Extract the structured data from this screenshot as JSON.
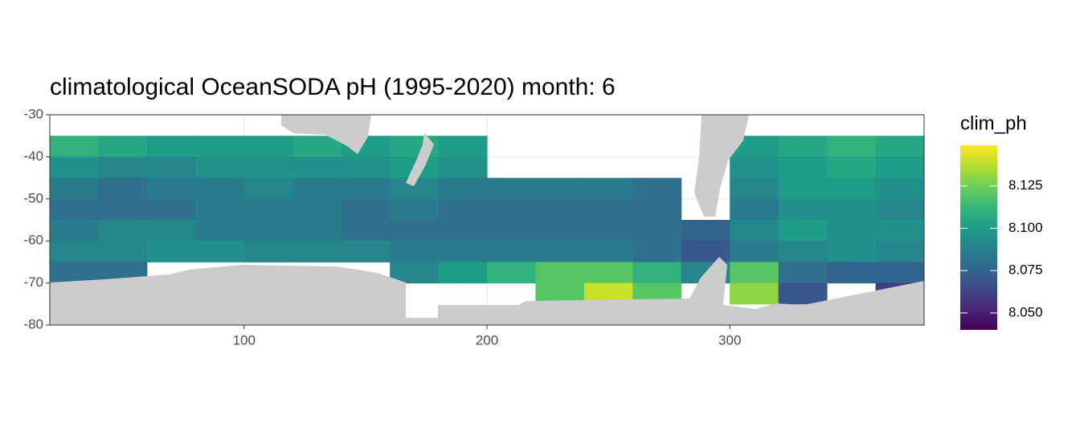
{
  "chart_data": {
    "type": "heatmap",
    "title": "climatological OceanSODA pH (1995-2020) month: 6",
    "x": [
      30,
      50,
      70,
      90,
      110,
      130,
      150,
      170,
      190,
      210,
      230,
      250,
      270,
      290,
      310,
      330,
      350,
      370
    ],
    "y": [
      -37.5,
      -42.5,
      -47.5,
      -52.5,
      -57.5,
      -62.5,
      -67.5,
      -72.5
    ],
    "values": [
      [
        8.11,
        8.105,
        8.1,
        8.1,
        8.1,
        8.105,
        8.1,
        8.105,
        8.1,
        null,
        null,
        null,
        null,
        null,
        8.1,
        8.105,
        8.11,
        8.105
      ],
      [
        8.095,
        8.09,
        8.09,
        8.095,
        8.095,
        8.095,
        8.095,
        8.1,
        8.095,
        null,
        null,
        null,
        null,
        null,
        8.095,
        8.1,
        8.105,
        8.1
      ],
      [
        8.085,
        8.08,
        8.085,
        8.085,
        8.09,
        8.085,
        8.085,
        8.09,
        8.085,
        8.085,
        8.085,
        8.085,
        8.08,
        null,
        8.09,
        8.1,
        8.1,
        8.095
      ],
      [
        8.08,
        8.08,
        8.08,
        8.085,
        8.085,
        8.085,
        8.08,
        8.085,
        8.08,
        8.08,
        8.08,
        8.08,
        8.08,
        null,
        8.085,
        8.095,
        8.095,
        8.09
      ],
      [
        8.085,
        8.09,
        8.09,
        8.085,
        8.085,
        8.085,
        8.08,
        8.08,
        8.08,
        8.08,
        8.08,
        8.08,
        8.08,
        8.075,
        8.09,
        8.1,
        8.095,
        8.095
      ],
      [
        8.09,
        8.09,
        8.095,
        8.095,
        8.09,
        8.09,
        8.09,
        8.085,
        8.085,
        8.085,
        8.085,
        8.085,
        8.08,
        8.07,
        8.085,
        8.09,
        8.095,
        8.09
      ],
      [
        8.08,
        8.08,
        null,
        null,
        null,
        null,
        null,
        8.09,
        8.1,
        8.11,
        8.12,
        8.12,
        8.11,
        8.09,
        8.12,
        8.08,
        8.075,
        8.075
      ],
      [
        null,
        null,
        null,
        null,
        null,
        null,
        null,
        null,
        null,
        null,
        8.12,
        8.14,
        8.12,
        null,
        8.13,
        8.07,
        null,
        8.06
      ]
    ],
    "xlim": [
      20,
      380
    ],
    "ylim": [
      -80,
      -30
    ],
    "xticks": [
      100,
      200,
      300
    ],
    "yticks": [
      -30,
      -40,
      -50,
      -60,
      -70,
      -80
    ],
    "grid": true,
    "colormap": "viridis",
    "legend_title": "clim_ph",
    "clim": [
      8.04,
      8.149
    ],
    "colorbar_ticks": [
      {
        "value": 8.05,
        "label": "8.050"
      },
      8.075,
      {
        "value": 8.1,
        "label": "8.100"
      },
      8.125
    ]
  }
}
